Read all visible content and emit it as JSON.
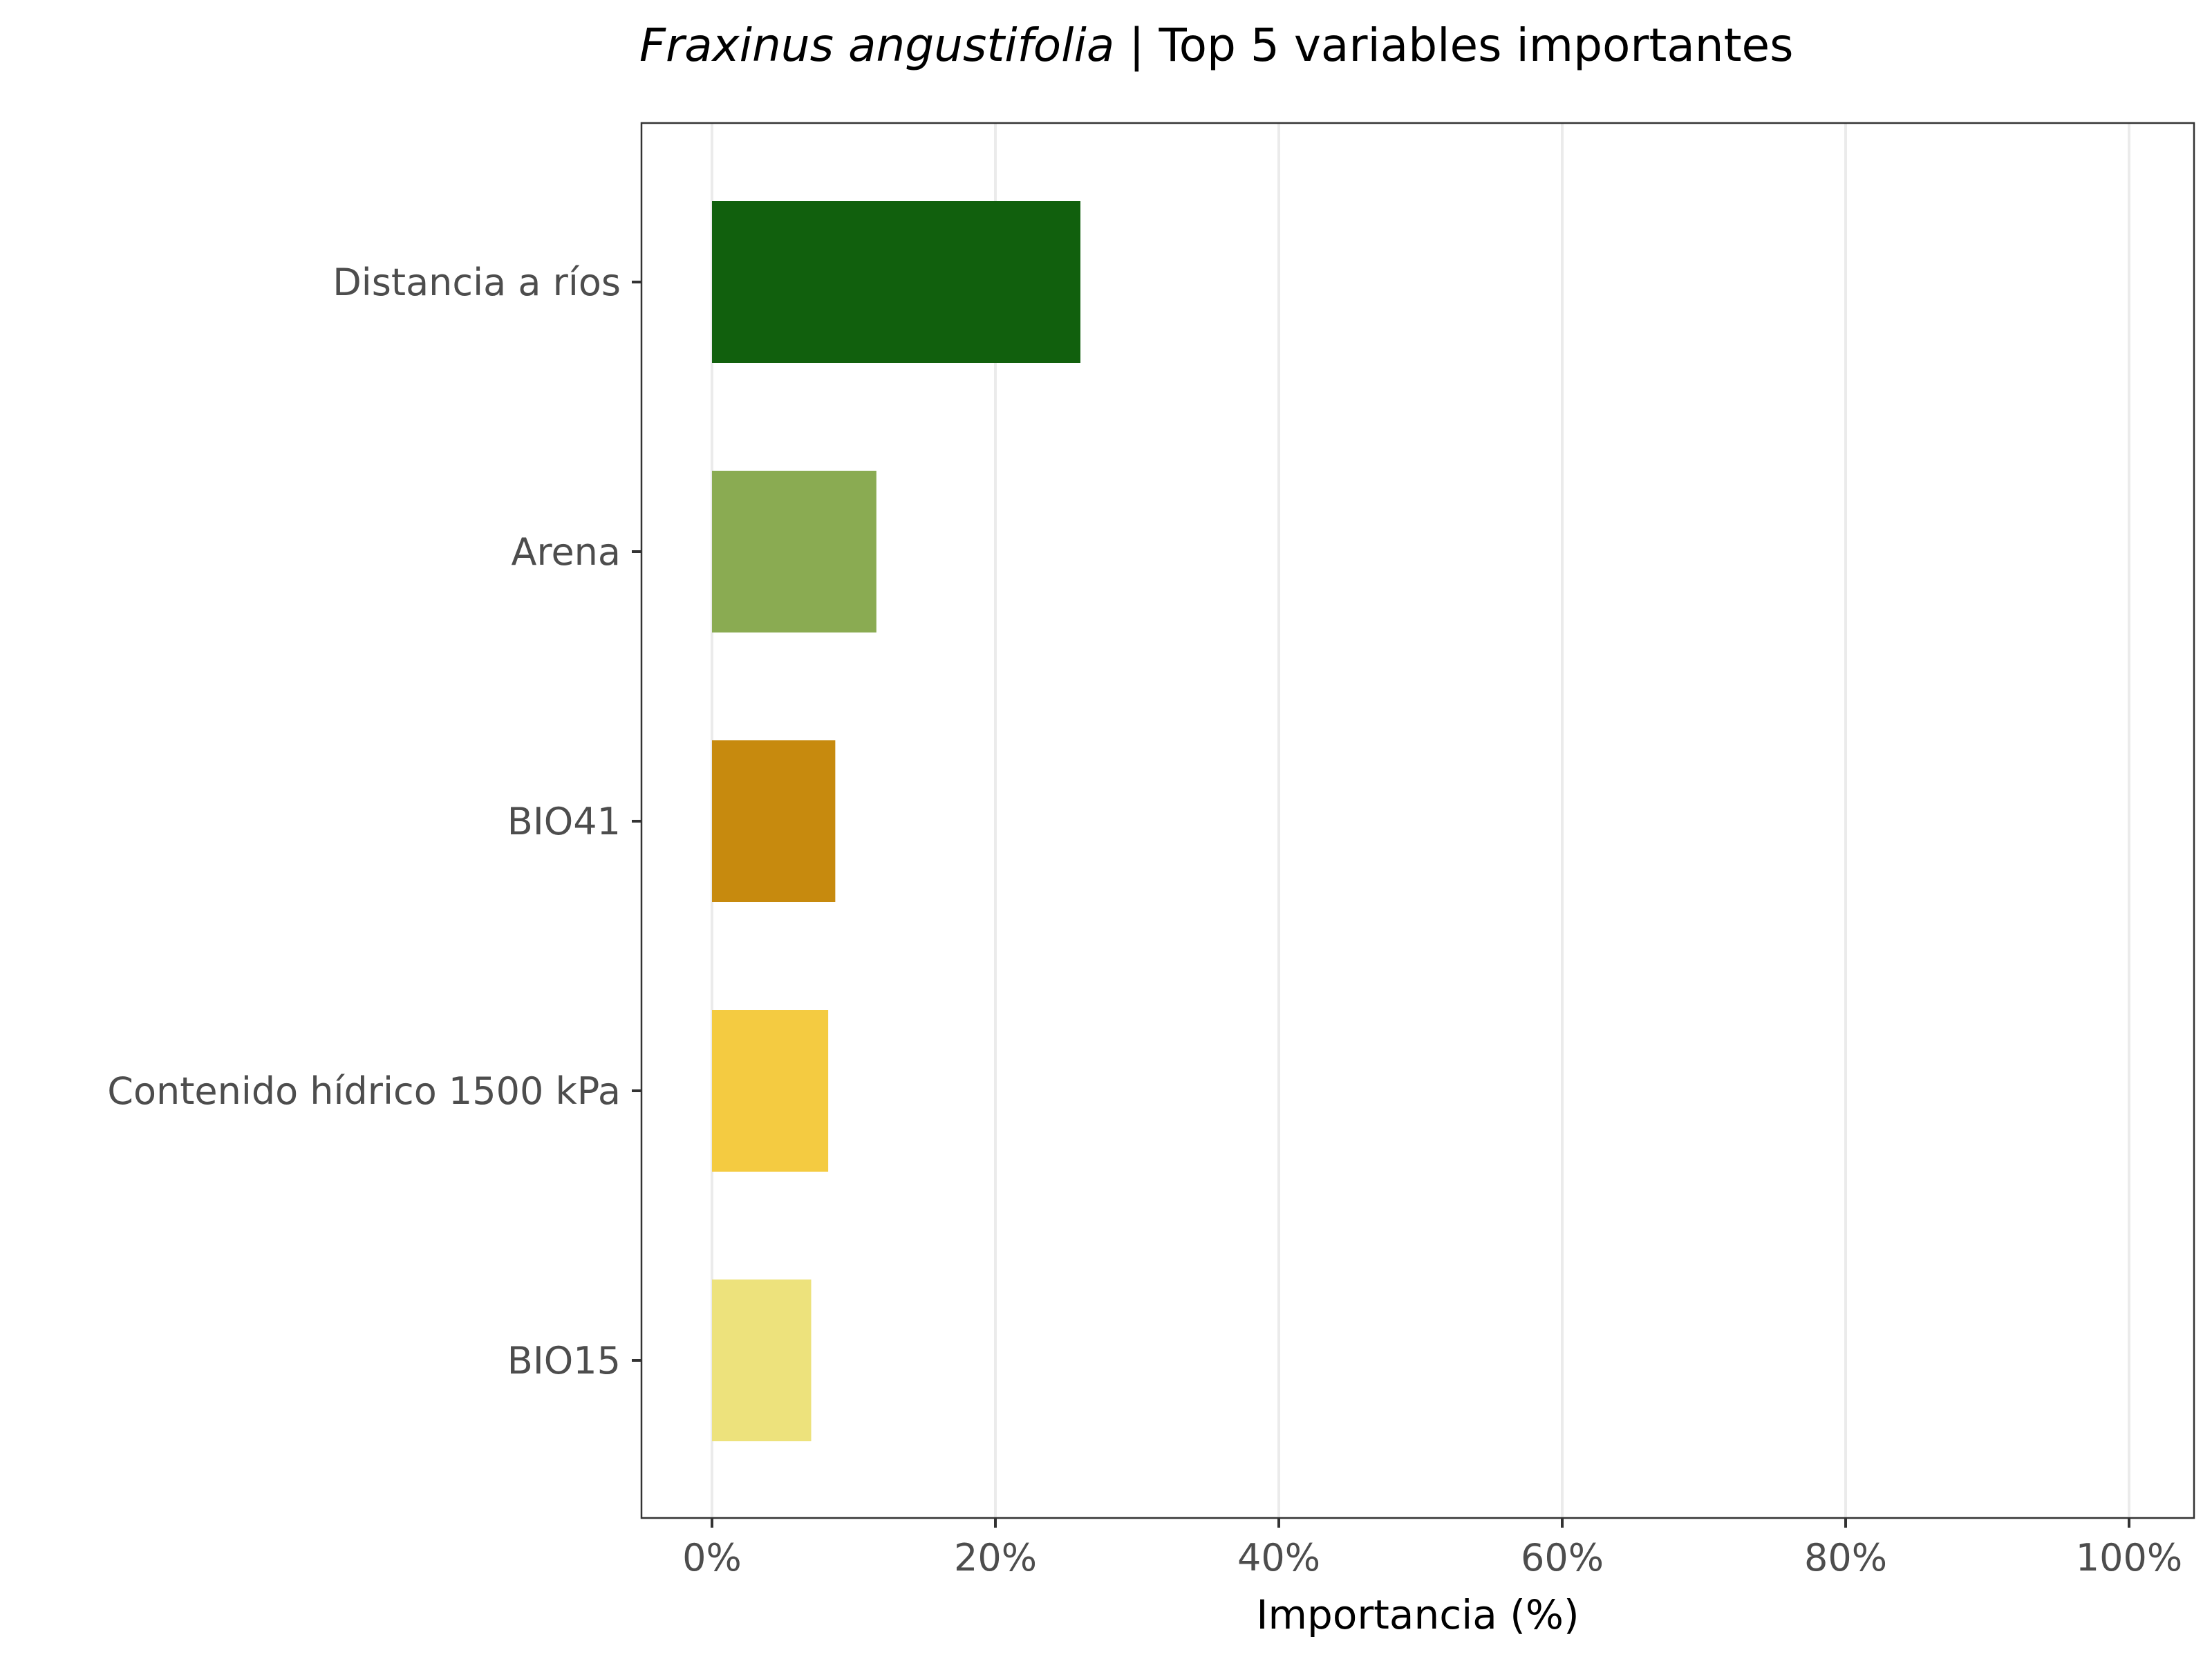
{
  "chart_data": {
    "type": "bar",
    "orientation": "horizontal",
    "title_species": "Fraxinus angustifolia",
    "title_rest": " | Top 5 variables importantes",
    "xlabel": "Importancia (%)",
    "ylabel": "",
    "xlim": [
      0,
      100
    ],
    "x_ticks": [
      0,
      20,
      40,
      60,
      80,
      100
    ],
    "x_tick_labels": [
      "0%",
      "20%",
      "40%",
      "60%",
      "80%",
      "100%"
    ],
    "categories": [
      "Distancia a ríos",
      "Arena",
      "BIO41",
      "Contenido hídrico 1500 kPa",
      "BIO15"
    ],
    "values": [
      26.0,
      11.6,
      8.7,
      8.2,
      7.0
    ],
    "bar_colors": [
      "#11600d",
      "#8aab52",
      "#c78a0e",
      "#f4cb41",
      "#ede27c"
    ],
    "grid": "vertical-major",
    "legend": "none"
  }
}
